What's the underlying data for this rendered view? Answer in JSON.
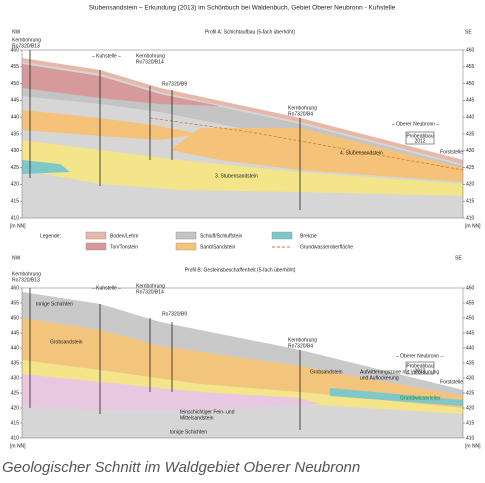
{
  "title": "Stubensandstein – Erkundung (2013) im Schönbuch bei Waldenbuch, Gebiet Oberer Neubronn - Kuhstelle",
  "profile_a": {
    "title": "Profil A: Schichtaufbau (5-fach überhöht)",
    "nw": "NW",
    "se": "SE",
    "axis_ticks": [
      "460",
      "455",
      "450",
      "445",
      "440",
      "435",
      "430",
      "425",
      "420",
      "415",
      "410"
    ],
    "axis_unit": "[m NN]",
    "labels": [
      "Kernbohrung",
      "Ro7320/B13",
      "– Kuhstelle –",
      "Kernbohrung",
      "Ro7320/B14",
      "Ro7320/B9",
      "Kernbohrung",
      "Ro7320/B4",
      "– Oberer Neubronn –",
      "Probeabbau",
      "2012",
      "Forststelle",
      "4. Stubensandstein",
      "3. Stubensandstein"
    ]
  },
  "legend": {
    "title": "Legende:",
    "items": [
      "Boden/Lehm",
      "Ton/Tonstein",
      "Schluff/Schluffstein",
      "Sand/Sandstein",
      "Brekzie",
      "Grundwasseroberfläche"
    ]
  },
  "profile_b": {
    "title": "Profil B: Gesteinsbeschaffenheit (5-fach überhöht)",
    "nw": "NW",
    "se": "SE",
    "axis_ticks": [
      "460",
      "455",
      "450",
      "445",
      "440",
      "435",
      "430",
      "425",
      "420",
      "415",
      "410"
    ],
    "axis_unit": "[m NN]",
    "labels": [
      "Kernbohrung",
      "Ro7320/B13",
      "– Kuhstelle –",
      "Kernbohrung",
      "Ro7320/B14",
      "Ro7320/B9",
      "Kernbohrung",
      "Ro7320/B4",
      "– Oberer Neubronn –",
      "Probeabbau",
      "2012",
      "Forststelle",
      "tonige Schichten",
      "Grobsandstein",
      "Aufwitterungszone mit Verbraunung",
      "und Auflockerung",
      "Grundwasserleiter",
      "feinschichtiger Fein- und",
      "Mittelsandstein"
    ]
  },
  "caption": "Geologischer Schnitt im Waldgebiet Oberer Neubronn"
}
